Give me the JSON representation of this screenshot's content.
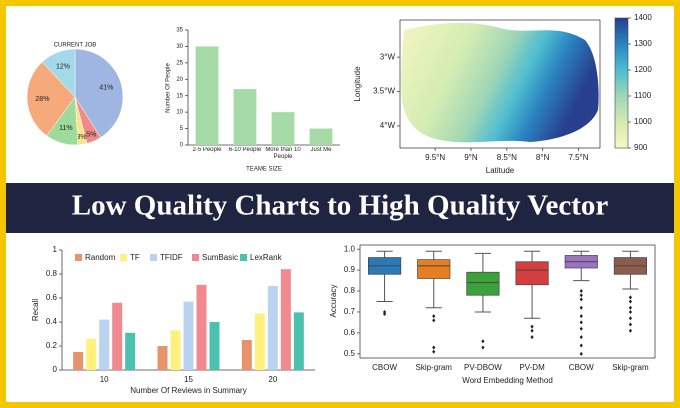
{
  "banner": {
    "title": "Low Quality Charts to High Quality Vector"
  },
  "chart_data": [
    {
      "type": "pie",
      "title": "CURRENT JOB",
      "values": [
        41,
        5,
        3,
        11,
        28,
        12
      ],
      "value_labels": [
        "41%",
        "5%",
        "3%",
        "11%",
        "28%",
        "12%"
      ],
      "colors": [
        "#9fb5e2",
        "#f08a86",
        "#f7e48e",
        "#9edb9a",
        "#f6aa7c",
        "#a3d9e8"
      ]
    },
    {
      "type": "bar",
      "categories": [
        "2-5 People",
        "6-10 People",
        "More than 10 People",
        "Just Me"
      ],
      "values": [
        30,
        17,
        10,
        5
      ],
      "color": "#a6daa6",
      "ylim": [
        0,
        35
      ],
      "yticks": [
        0,
        5,
        10,
        15,
        20,
        25,
        30,
        35
      ],
      "ylabel": "Number Of People",
      "xlabel": "TEAME SIZE"
    },
    {
      "type": "contour",
      "xlabel": "Latitude",
      "ylabel": "Longitude",
      "xlim": [
        9.99,
        7.2
      ],
      "ylim": [
        4.32,
        2.46
      ],
      "xticks": [
        {
          "value": 9.5,
          "label": "9.5°N"
        },
        {
          "value": 9,
          "label": "9°N"
        },
        {
          "value": 8.5,
          "label": "8.5°N"
        },
        {
          "value": 8,
          "label": "8°N"
        },
        {
          "value": 7.5,
          "label": "7.5°N"
        }
      ],
      "yticks": [
        {
          "value": 3,
          "label": "3°W"
        },
        {
          "value": 3.5,
          "label": "3.5°W"
        },
        {
          "value": 4,
          "label": "4°W"
        }
      ],
      "colorbar": {
        "lim": [
          900,
          1400
        ],
        "ticks": [
          900,
          1000,
          1100,
          1200,
          1300,
          1400
        ],
        "colors": [
          "#f7f8c4",
          "#d2ebb1",
          "#9fd6b6",
          "#4dbcd0",
          "#2a84c0",
          "#263f90"
        ]
      }
    },
    {
      "type": "grouped_bar",
      "categories": [
        "10",
        "15",
        "20"
      ],
      "ylim": [
        0,
        1
      ],
      "yticks": [
        0,
        0.2,
        0.4,
        0.6,
        0.8,
        1
      ],
      "ylabel": "Recall",
      "xlabel": "Number Of Reviews in Summary",
      "series": [
        {
          "name": "Random",
          "color": "#e8946a",
          "values": [
            0.15,
            0.2,
            0.25
          ]
        },
        {
          "name": "TF",
          "color": "#fff17c",
          "values": [
            0.26,
            0.33,
            0.47
          ]
        },
        {
          "name": "TFIDF",
          "color": "#bad3f1",
          "values": [
            0.42,
            0.57,
            0.7
          ]
        },
        {
          "name": "SumBasic",
          "color": "#f08a90",
          "values": [
            0.56,
            0.71,
            0.84
          ]
        },
        {
          "name": "LexRank",
          "color": "#4cc1b0",
          "values": [
            0.31,
            0.4,
            0.48
          ]
        }
      ]
    },
    {
      "type": "box",
      "categories": [
        "CBOW",
        "Skip-gram",
        "PV-DBOW",
        "PV-DM",
        "CBOW",
        "Skip-gram"
      ],
      "ylim": [
        0.48,
        1.02
      ],
      "yticks": [
        0.5,
        0.6,
        0.7,
        0.8,
        0.9,
        {
          "value": 1,
          "label": "1.0"
        }
      ],
      "ylabel": "Accuracy",
      "xlabel": "Word Embedding Method",
      "colors": [
        "#2b79b6",
        "#e57f20",
        "#3aa13b",
        "#d33f3f",
        "#9a73c3",
        "#8c5c4d"
      ],
      "boxes": [
        {
          "whislo": 0.75,
          "q1": 0.88,
          "med": 0.92,
          "q3": 0.96,
          "whishi": 0.99,
          "fliers": [
            0.7,
            0.69
          ]
        },
        {
          "whislo": 0.72,
          "q1": 0.86,
          "med": 0.92,
          "q3": 0.95,
          "whishi": 0.99,
          "fliers": [
            0.68,
            0.66,
            0.53,
            0.51
          ]
        },
        {
          "whislo": 0.7,
          "q1": 0.78,
          "med": 0.84,
          "q3": 0.89,
          "whishi": 0.98,
          "fliers": [
            0.56,
            0.53
          ]
        },
        {
          "whislo": 0.67,
          "q1": 0.83,
          "med": 0.9,
          "q3": 0.94,
          "whishi": 0.99,
          "fliers": [
            0.63,
            0.61,
            0.58
          ]
        },
        {
          "whislo": 0.85,
          "q1": 0.91,
          "med": 0.94,
          "q3": 0.97,
          "whishi": 0.99,
          "fliers": [
            0.8,
            0.78,
            0.76,
            0.72,
            0.68,
            0.65,
            0.62,
            0.58,
            0.54,
            0.5
          ]
        },
        {
          "whislo": 0.81,
          "q1": 0.88,
          "med": 0.92,
          "q3": 0.96,
          "whishi": 0.99,
          "fliers": [
            0.77,
            0.75,
            0.72,
            0.7,
            0.67,
            0.64,
            0.61
          ]
        }
      ]
    }
  ]
}
